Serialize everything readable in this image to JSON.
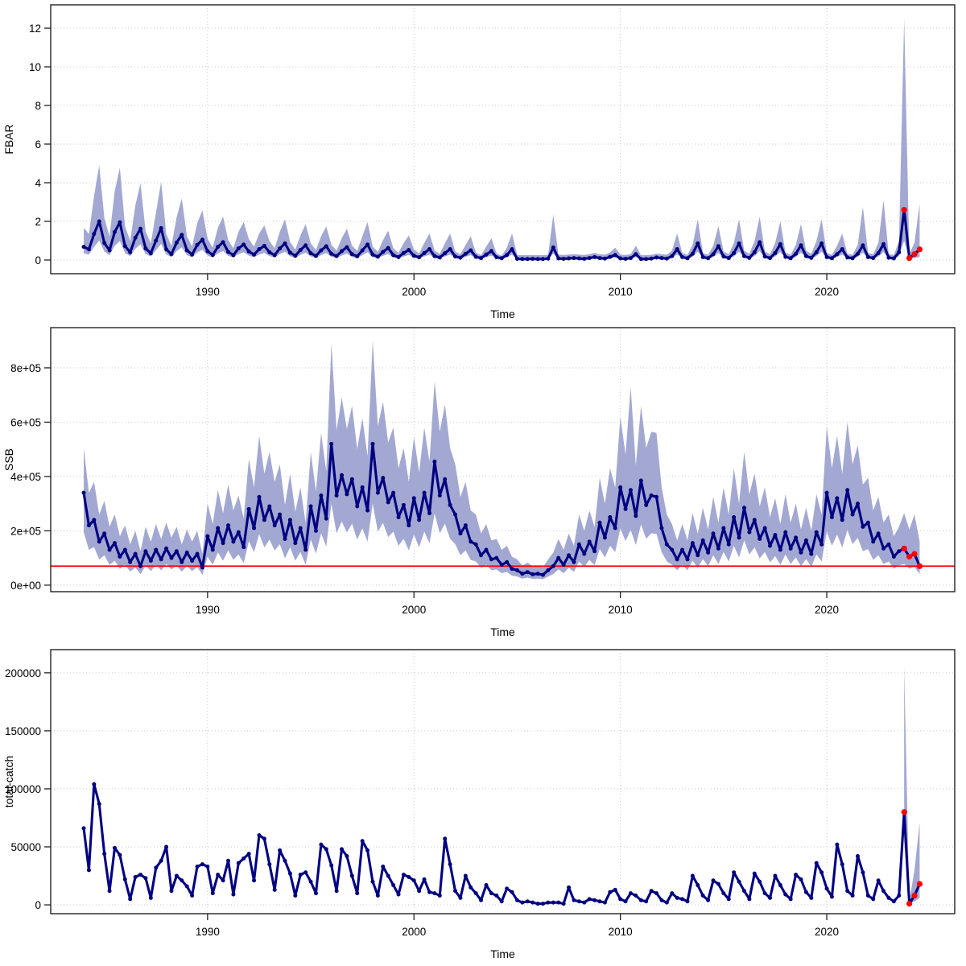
{
  "figure": {
    "background": "#ffffff",
    "n_panels": 3
  },
  "chart_data": [
    {
      "type": "line",
      "ylabel": "FBAR",
      "xlabel": "Time",
      "x_start": 1984,
      "x_step": 0.25,
      "n_points": 163,
      "n_forecast": 4,
      "xlim": [
        1982.4,
        2026.2
      ],
      "ylim": [
        -0.71,
        13.21
      ],
      "y_scale": 1,
      "xticks": [
        1990,
        2000,
        2010,
        2020
      ],
      "yticks": {
        "values": [
          0,
          2,
          4,
          6,
          8,
          10,
          12
        ],
        "labels": [
          "0",
          "2",
          "4",
          "6",
          "8",
          "10",
          "12"
        ]
      },
      "grid": true,
      "legend": "none",
      "colors": {
        "line": "#000080",
        "band": "#a3a8d2",
        "forecast": "#ff0000"
      },
      "y": [
        0.68,
        0.55,
        1.35,
        2.0,
        0.88,
        0.5,
        1.45,
        1.95,
        0.72,
        0.4,
        1.15,
        1.62,
        0.6,
        0.35,
        1.0,
        1.65,
        0.55,
        0.3,
        0.9,
        1.3,
        0.5,
        0.28,
        0.78,
        1.05,
        0.45,
        0.26,
        0.68,
        0.92,
        0.42,
        0.25,
        0.6,
        0.8,
        0.44,
        0.28,
        0.56,
        0.73,
        0.4,
        0.25,
        0.6,
        0.86,
        0.38,
        0.22,
        0.52,
        0.76,
        0.35,
        0.21,
        0.5,
        0.71,
        0.32,
        0.2,
        0.46,
        0.66,
        0.3,
        0.19,
        0.5,
        0.8,
        0.28,
        0.17,
        0.42,
        0.62,
        0.25,
        0.15,
        0.36,
        0.52,
        0.22,
        0.14,
        0.36,
        0.56,
        0.2,
        0.13,
        0.35,
        0.56,
        0.18,
        0.12,
        0.32,
        0.5,
        0.16,
        0.1,
        0.28,
        0.46,
        0.14,
        0.09,
        0.26,
        0.56,
        0.06,
        0.05,
        0.05,
        0.06,
        0.05,
        0.05,
        0.07,
        0.65,
        0.08,
        0.06,
        0.08,
        0.1,
        0.08,
        0.06,
        0.1,
        0.15,
        0.1,
        0.07,
        0.16,
        0.26,
        0.08,
        0.06,
        0.1,
        0.3,
        0.05,
        0.05,
        0.07,
        0.13,
        0.1,
        0.07,
        0.2,
        0.56,
        0.15,
        0.09,
        0.32,
        0.86,
        0.15,
        0.09,
        0.3,
        0.72,
        0.18,
        0.1,
        0.36,
        0.86,
        0.2,
        0.11,
        0.4,
        0.92,
        0.18,
        0.1,
        0.36,
        0.82,
        0.16,
        0.09,
        0.32,
        0.76,
        0.2,
        0.11,
        0.4,
        0.86,
        0.15,
        0.09,
        0.3,
        0.56,
        0.13,
        0.09,
        0.32,
        0.76,
        0.15,
        0.1,
        0.36,
        0.82,
        0.12,
        0.08,
        0.4,
        2.6,
        0.1,
        0.3,
        0.55
      ],
      "band": {
        "start_index": 0,
        "hi": [
          1.67,
          1.35,
          3.31,
          4.9,
          2.16,
          1.23,
          3.55,
          4.78,
          1.76,
          0.98,
          2.82,
          3.97,
          1.47,
          0.86,
          2.45,
          4.04,
          1.35,
          0.74,
          2.21,
          3.19,
          1.23,
          0.69,
          1.91,
          2.57,
          1.1,
          0.64,
          1.67,
          2.25,
          1.03,
          0.61,
          1.47,
          1.96,
          1.08,
          0.69,
          1.37,
          1.79,
          0.98,
          0.61,
          1.47,
          2.11,
          0.93,
          0.54,
          1.27,
          1.86,
          0.86,
          0.51,
          1.23,
          1.74,
          0.78,
          0.49,
          1.13,
          1.62,
          0.74,
          0.47,
          1.23,
          1.96,
          0.69,
          0.42,
          1.03,
          1.52,
          0.61,
          0.37,
          0.88,
          1.27,
          0.54,
          0.34,
          0.88,
          1.37,
          0.49,
          0.32,
          0.86,
          1.37,
          0.44,
          0.29,
          0.78,
          1.23,
          0.39,
          0.25,
          0.69,
          1.13,
          0.34,
          0.22,
          0.64,
          1.37,
          0.26,
          0.25,
          0.25,
          0.26,
          0.25,
          0.25,
          0.27,
          2.35,
          0.28,
          0.26,
          0.28,
          0.3,
          0.28,
          0.26,
          0.3,
          0.37,
          0.3,
          0.27,
          0.39,
          0.64,
          0.28,
          0.26,
          0.3,
          0.74,
          0.25,
          0.25,
          0.27,
          0.33,
          0.3,
          0.27,
          0.49,
          1.37,
          0.37,
          0.27,
          0.78,
          2.11,
          0.37,
          0.27,
          0.74,
          1.76,
          0.44,
          0.3,
          0.88,
          2.11,
          0.49,
          0.32,
          0.98,
          2.25,
          0.44,
          0.3,
          0.88,
          2.01,
          0.39,
          0.27,
          0.78,
          1.86,
          0.49,
          0.32,
          0.98,
          2.11,
          0.37,
          0.27,
          0.74,
          1.37,
          0.32,
          0.27,
          0.78,
          2.75,
          0.37,
          0.3,
          0.88,
          3.1,
          0.3,
          0.26,
          0.98,
          12.5,
          0.3,
          0.9,
          2.9
        ],
        "lo": [
          0.34,
          0.28,
          0.68,
          1.0,
          0.44,
          0.25,
          0.73,
          0.98,
          0.36,
          0.2,
          0.58,
          0.81,
          0.3,
          0.18,
          0.5,
          0.83,
          0.28,
          0.15,
          0.45,
          0.65,
          0.25,
          0.14,
          0.39,
          0.53,
          0.23,
          0.13,
          0.34,
          0.46,
          0.21,
          0.13,
          0.3,
          0.4,
          0.22,
          0.14,
          0.28,
          0.37,
          0.2,
          0.13,
          0.3,
          0.43,
          0.19,
          0.11,
          0.26,
          0.38,
          0.18,
          0.11,
          0.25,
          0.36,
          0.16,
          0.1,
          0.23,
          0.33,
          0.15,
          0.1,
          0.25,
          0.4,
          0.14,
          0.09,
          0.21,
          0.31,
          0.13,
          0.08,
          0.18,
          0.26,
          0.11,
          0.07,
          0.18,
          0.28,
          0.1,
          0.07,
          0.18,
          0.28,
          0.09,
          0.06,
          0.16,
          0.25,
          0.08,
          0.05,
          0.14,
          0.23,
          0.07,
          0.05,
          0.13,
          0.28,
          0.03,
          0.03,
          0.03,
          0.03,
          0.03,
          0.03,
          0.04,
          0.33,
          0.04,
          0.03,
          0.04,
          0.05,
          0.04,
          0.03,
          0.05,
          0.08,
          0.05,
          0.04,
          0.08,
          0.13,
          0.04,
          0.03,
          0.05,
          0.15,
          0.03,
          0.03,
          0.04,
          0.07,
          0.05,
          0.04,
          0.1,
          0.28,
          0.08,
          0.05,
          0.16,
          0.43,
          0.08,
          0.05,
          0.15,
          0.36,
          0.09,
          0.05,
          0.18,
          0.43,
          0.1,
          0.06,
          0.2,
          0.46,
          0.09,
          0.05,
          0.18,
          0.41,
          0.08,
          0.05,
          0.16,
          0.38,
          0.1,
          0.06,
          0.2,
          0.43,
          0.08,
          0.05,
          0.15,
          0.28,
          0.07,
          0.05,
          0.16,
          0.38,
          0.08,
          0.05,
          0.18,
          0.41,
          0.06,
          0.04,
          0.2,
          1.0,
          0.04,
          0.1,
          0.16
        ]
      }
    },
    {
      "type": "line",
      "ylabel": "SSB",
      "xlabel": "Time",
      "x_start": 1984,
      "x_step": 0.25,
      "n_points": 163,
      "n_forecast": 4,
      "xlim": [
        1982.4,
        2026.2
      ],
      "ylim": [
        -24000,
        948000
      ],
      "y_scale": 100000,
      "xticks": [
        1990,
        2000,
        2010,
        2020
      ],
      "yticks": {
        "values": [
          0,
          200000,
          400000,
          600000,
          800000
        ],
        "labels": [
          "0e+00",
          "2e+05",
          "4e+05",
          "6e+05",
          "8e+05"
        ]
      },
      "grid": true,
      "legend": "none",
      "ref_line": {
        "value": 70000,
        "color": "#ff0000"
      },
      "colors": {
        "line": "#000080",
        "band": "#a3a8d2",
        "forecast": "#ff0000"
      },
      "y": [
        3.4,
        2.2,
        2.4,
        1.6,
        1.9,
        1.3,
        1.55,
        1.05,
        1.3,
        0.85,
        1.15,
        0.7,
        1.25,
        0.9,
        1.3,
        0.95,
        1.35,
        1.0,
        1.25,
        0.85,
        1.2,
        0.9,
        1.15,
        0.65,
        1.8,
        1.3,
        2.1,
        1.55,
        2.2,
        1.6,
        1.95,
        1.4,
        2.8,
        2.1,
        3.25,
        2.4,
        2.9,
        2.2,
        2.6,
        1.7,
        2.4,
        1.55,
        2.1,
        1.3,
        2.9,
        2.0,
        3.3,
        2.45,
        5.2,
        3.3,
        4.05,
        3.35,
        3.9,
        2.9,
        3.6,
        2.75,
        5.2,
        3.4,
        3.95,
        3.05,
        3.4,
        2.5,
        2.95,
        2.2,
        3.2,
        2.4,
        3.4,
        2.65,
        4.55,
        3.3,
        3.9,
        2.95,
        2.6,
        1.9,
        2.2,
        1.6,
        1.5,
        1.1,
        1.3,
        0.95,
        1.0,
        0.75,
        0.85,
        0.6,
        0.55,
        0.42,
        0.48,
        0.4,
        0.42,
        0.38,
        0.55,
        0.7,
        1.0,
        0.75,
        1.1,
        0.85,
        1.5,
        1.15,
        1.6,
        1.25,
        2.3,
        1.75,
        2.5,
        2.1,
        3.6,
        2.8,
        3.5,
        2.55,
        3.85,
        2.95,
        3.3,
        3.25,
        2.1,
        1.5,
        1.3,
        0.95,
        1.3,
        0.95,
        1.55,
        1.1,
        1.65,
        1.2,
        1.9,
        1.35,
        2.1,
        1.5,
        2.5,
        1.75,
        2.85,
        1.95,
        2.4,
        1.7,
        2.1,
        1.45,
        1.85,
        1.3,
        1.95,
        1.35,
        1.75,
        1.2,
        1.65,
        1.15,
        1.95,
        1.5,
        3.4,
        2.5,
        3.2,
        2.4,
        3.5,
        2.6,
        3.0,
        2.15,
        2.3,
        1.6,
        1.9,
        1.35,
        1.5,
        1.05,
        1.25,
        1.35,
        1.05,
        1.15,
        0.7
      ],
      "band": {
        "start_index": 0,
        "hi": [
          5.05,
          3.4,
          3.8,
          2.6,
          3.1,
          2.15,
          2.6,
          1.8,
          2.2,
          1.5,
          2.0,
          1.25,
          2.15,
          1.6,
          2.25,
          1.7,
          2.3,
          1.75,
          2.15,
          1.5,
          2.05,
          1.6,
          2.0,
          1.15,
          3.0,
          2.25,
          3.5,
          2.65,
          3.7,
          2.75,
          3.3,
          2.45,
          4.65,
          3.6,
          5.5,
          4.1,
          4.9,
          3.8,
          4.45,
          2.95,
          4.1,
          2.7,
          3.6,
          2.3,
          4.9,
          3.45,
          5.6,
          4.2,
          8.9,
          5.7,
          6.9,
          5.75,
          6.6,
          5.0,
          6.15,
          4.75,
          9.0,
          5.85,
          6.75,
          5.25,
          5.8,
          4.3,
          5.05,
          3.8,
          5.45,
          4.15,
          5.8,
          4.55,
          7.5,
          5.65,
          6.65,
          5.05,
          4.45,
          3.25,
          3.8,
          2.75,
          2.6,
          1.9,
          2.25,
          1.65,
          1.7,
          1.3,
          1.45,
          1.05,
          0.95,
          0.72,
          0.83,
          0.7,
          0.72,
          0.66,
          0.95,
          1.2,
          1.7,
          1.3,
          1.9,
          1.45,
          2.6,
          2.0,
          2.75,
          2.15,
          3.95,
          3.0,
          4.3,
          3.6,
          6.2,
          4.8,
          7.3,
          4.4,
          6.6,
          5.05,
          5.65,
          5.6,
          3.6,
          2.6,
          2.25,
          1.65,
          2.25,
          1.65,
          2.65,
          1.9,
          2.85,
          2.05,
          3.25,
          2.3,
          3.6,
          2.6,
          4.3,
          3.0,
          4.9,
          3.35,
          4.1,
          2.9,
          3.6,
          2.5,
          3.2,
          2.25,
          3.35,
          2.3,
          3.0,
          2.05,
          2.85,
          2.0,
          3.35,
          2.6,
          5.85,
          4.3,
          5.5,
          4.1,
          6.0,
          4.45,
          5.15,
          3.7,
          3.95,
          2.75,
          3.25,
          2.3,
          2.6,
          1.8,
          2.15,
          2.65,
          2.05,
          2.6,
          1.6
        ],
        "lo": [
          1.95,
          1.3,
          1.4,
          0.95,
          1.1,
          0.75,
          0.9,
          0.6,
          0.75,
          0.5,
          0.65,
          0.4,
          0.72,
          0.52,
          0.75,
          0.55,
          0.78,
          0.58,
          0.72,
          0.5,
          0.7,
          0.52,
          0.67,
          0.38,
          1.05,
          0.75,
          1.2,
          0.9,
          1.28,
          0.93,
          1.13,
          0.81,
          1.62,
          1.22,
          1.88,
          1.39,
          1.68,
          1.28,
          1.51,
          0.99,
          1.39,
          0.9,
          1.22,
          0.75,
          1.68,
          1.16,
          1.91,
          1.42,
          3.0,
          1.91,
          2.35,
          1.94,
          2.26,
          1.68,
          2.09,
          1.6,
          3.0,
          1.97,
          2.29,
          1.77,
          1.97,
          1.45,
          1.71,
          1.28,
          1.86,
          1.39,
          1.97,
          1.54,
          2.64,
          1.91,
          2.26,
          1.71,
          1.51,
          1.1,
          1.28,
          0.93,
          0.87,
          0.64,
          0.75,
          0.55,
          0.58,
          0.44,
          0.49,
          0.35,
          0.32,
          0.24,
          0.28,
          0.23,
          0.24,
          0.22,
          0.32,
          0.41,
          0.58,
          0.44,
          0.64,
          0.49,
          0.87,
          0.67,
          0.93,
          0.73,
          1.33,
          1.02,
          1.45,
          1.22,
          2.09,
          1.62,
          2.03,
          1.48,
          2.23,
          1.71,
          1.91,
          1.89,
          1.22,
          0.87,
          0.75,
          0.55,
          0.75,
          0.55,
          0.9,
          0.64,
          0.96,
          0.7,
          1.1,
          0.78,
          1.22,
          0.87,
          1.45,
          1.02,
          1.65,
          1.13,
          1.39,
          0.99,
          1.22,
          0.84,
          1.07,
          0.75,
          1.13,
          0.78,
          1.02,
          0.7,
          0.96,
          0.67,
          1.13,
          0.87,
          1.97,
          1.45,
          1.86,
          1.39,
          2.03,
          1.51,
          1.74,
          1.25,
          1.33,
          0.93,
          1.1,
          0.78,
          0.87,
          0.61,
          0.73,
          0.78,
          0.61,
          0.67,
          0.41
        ]
      }
    },
    {
      "type": "line",
      "ylabel": "total-catch",
      "xlabel": "Time",
      "x_start": 1984,
      "x_step": 0.25,
      "n_points": 163,
      "n_forecast": 4,
      "xlim": [
        1982.4,
        2026.2
      ],
      "ylim": [
        -7600,
        220000
      ],
      "y_scale": 1000,
      "xticks": [
        1990,
        2000,
        2010,
        2020
      ],
      "yticks": {
        "values": [
          0,
          50000,
          100000,
          150000,
          200000
        ],
        "labels": [
          "0",
          "50000",
          "100000",
          "150000",
          "200000"
        ]
      },
      "grid": true,
      "legend": "none",
      "colors": {
        "line": "#000080",
        "band": "#a3a8d2",
        "forecast": "#ff0000"
      },
      "y": [
        66,
        30,
        104,
        87,
        44,
        12,
        49,
        43,
        22,
        5,
        24,
        26,
        23,
        6,
        32,
        38,
        50,
        12,
        25,
        21,
        16,
        8,
        33,
        35,
        33,
        10,
        26,
        21,
        38,
        9,
        36,
        40,
        44,
        21,
        60,
        57,
        35,
        13,
        47,
        38,
        27,
        8,
        26,
        28,
        20,
        10,
        52,
        48,
        34,
        12,
        48,
        42,
        25,
        10,
        55,
        47,
        20,
        8,
        33,
        25,
        17,
        9,
        26,
        24,
        21,
        12,
        22,
        11,
        10,
        8,
        57,
        35,
        12,
        6,
        25,
        15,
        10,
        4,
        17,
        10,
        8,
        3,
        14,
        11,
        4,
        2,
        3,
        2,
        1,
        1,
        2,
        2,
        2,
        1,
        15,
        4,
        3,
        2,
        5,
        4,
        3,
        2,
        11,
        13,
        5,
        3,
        10,
        8,
        4,
        3,
        12,
        10,
        4,
        2,
        10,
        6,
        5,
        3,
        25,
        17,
        8,
        4,
        21,
        18,
        10,
        5,
        28,
        20,
        12,
        5,
        27,
        20,
        10,
        6,
        25,
        17,
        9,
        5,
        26,
        22,
        11,
        6,
        36,
        28,
        14,
        7,
        52,
        35,
        12,
        8,
        42,
        28,
        8,
        5,
        21,
        12,
        6,
        3,
        8,
        80,
        1,
        8,
        18
      ],
      "band": {
        "start_index": 159,
        "hi": [
          205,
          3,
          30,
          71
        ],
        "lo": [
          55,
          0.5,
          3,
          6
        ]
      }
    }
  ]
}
